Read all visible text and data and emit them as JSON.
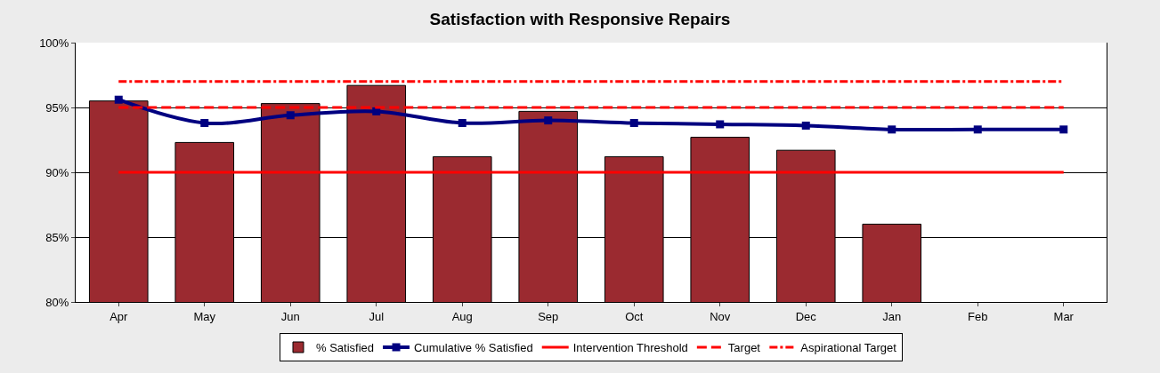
{
  "chart_data": {
    "type": "bar",
    "title": "Satisfaction with Responsive Repairs",
    "categories": [
      "Apr",
      "May",
      "Jun",
      "Jul",
      "Aug",
      "Sep",
      "Oct",
      "Nov",
      "Dec",
      "Jan",
      "Feb",
      "Mar"
    ],
    "series": [
      {
        "name": "% Satisfied",
        "color": "#9b2a30",
        "values": [
          95.5,
          92.3,
          95.3,
          96.7,
          91.2,
          94.7,
          91.2,
          92.7,
          91.7,
          86.0,
          null,
          null
        ]
      },
      {
        "name": "Cumulative % Satisfied",
        "type": "line",
        "color": "#000080",
        "marker": "square",
        "line_style": "solid",
        "values": [
          95.6,
          93.8,
          94.4,
          94.7,
          93.8,
          94.0,
          93.8,
          93.7,
          93.6,
          93.3,
          93.3,
          93.3
        ]
      },
      {
        "name": "Intervention Threshold",
        "type": "line",
        "color": "#ff0000",
        "marker": "none",
        "line_style": "solid",
        "values": [
          90,
          90,
          90,
          90,
          90,
          90,
          90,
          90,
          90,
          90,
          90,
          90
        ]
      },
      {
        "name": "Target",
        "type": "line",
        "color": "#ff0000",
        "marker": "none",
        "line_style": "dashed",
        "values": [
          95,
          95,
          95,
          95,
          95,
          95,
          95,
          95,
          95,
          95,
          95,
          95
        ]
      },
      {
        "name": "Aspirational Target",
        "type": "line",
        "color": "#ff0000",
        "marker": "none",
        "line_style": "dashdot",
        "values": [
          97,
          97,
          97,
          97,
          97,
          97,
          97,
          97,
          97,
          97,
          97,
          97
        ]
      }
    ],
    "ylim": [
      80,
      100
    ],
    "yticks": [
      {
        "value": 80,
        "label": "80%"
      },
      {
        "value": 85,
        "label": "85%"
      },
      {
        "value": 90,
        "label": "90%"
      },
      {
        "value": 95,
        "label": "95%"
      },
      {
        "value": 100,
        "label": "100%"
      }
    ],
    "grid": "y",
    "legend": "bottom"
  }
}
